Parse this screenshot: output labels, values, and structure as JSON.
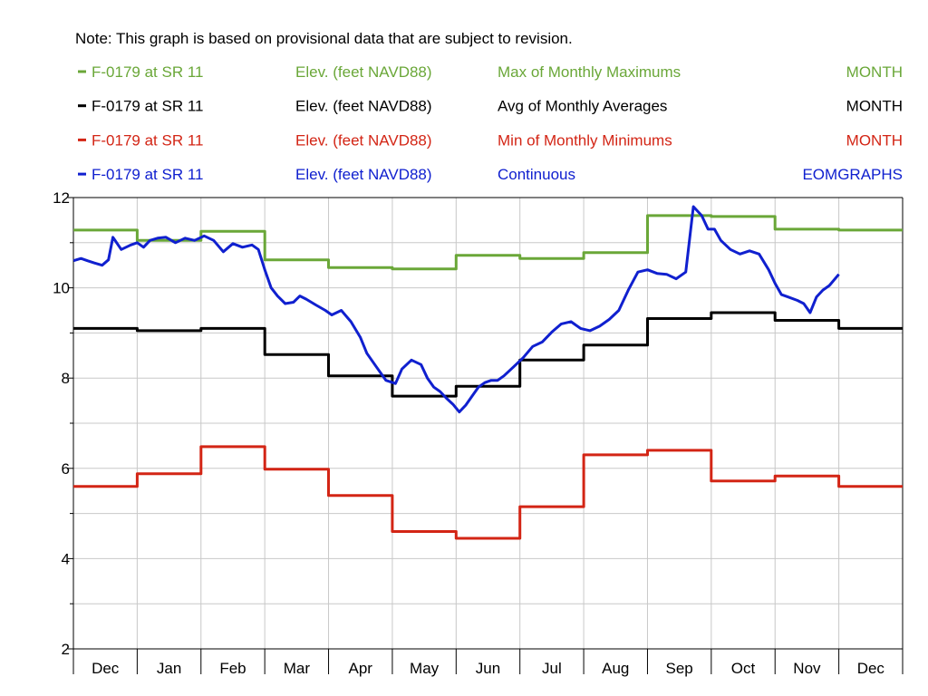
{
  "note": "Note: This graph is based on provisional data that are subject to revision.",
  "colors": {
    "green": "#6aa738",
    "black": "#000000",
    "red": "#d32515",
    "blue": "#1020cf",
    "grid": "#c8c8c8"
  },
  "legend": [
    {
      "site": "F-0179 at SR 11",
      "param": "Elev. (feet NAVD88)",
      "stat": "Max of Monthly Maximums",
      "period": "MONTH",
      "color": "#6aa738"
    },
    {
      "site": "F-0179 at SR 11",
      "param": "Elev. (feet NAVD88)",
      "stat": "Avg of Monthly Averages",
      "period": "MONTH",
      "color": "#000000"
    },
    {
      "site": "F-0179 at SR 11",
      "param": "Elev. (feet NAVD88)",
      "stat": "Min of Monthly Minimums",
      "period": "MONTH",
      "color": "#d32515"
    },
    {
      "site": "F-0179 at SR 11",
      "param": "Elev. (feet NAVD88)",
      "stat": "Continuous",
      "period": "EOMGRAPHS",
      "color": "#1020cf"
    }
  ],
  "chart_data": {
    "type": "line",
    "title": "",
    "xlabel": "",
    "ylabel": "",
    "ylim": [
      2,
      12
    ],
    "ytick_labels": [
      "2",
      "4",
      "6",
      "8",
      "10",
      "12"
    ],
    "ytick_values": [
      2,
      4,
      6,
      8,
      10,
      12
    ],
    "grid": true,
    "categories": [
      "Dec",
      "Jan",
      "Feb",
      "Mar",
      "Apr",
      "May",
      "Jun",
      "Jul",
      "Aug",
      "Sep",
      "Oct",
      "Nov",
      "Dec"
    ],
    "series": [
      {
        "name": "Max of Monthly Maximums",
        "style": "step",
        "color": "#6aa738",
        "values": [
          11.28,
          11.05,
          11.25,
          10.62,
          10.45,
          10.42,
          10.72,
          10.65,
          10.78,
          11.6,
          11.58,
          11.3,
          11.28
        ]
      },
      {
        "name": "Avg of Monthly Averages",
        "style": "step",
        "color": "#000000",
        "values": [
          9.1,
          9.05,
          9.1,
          8.52,
          8.05,
          7.6,
          7.82,
          8.4,
          8.73,
          9.32,
          9.45,
          9.28,
          9.1
        ]
      },
      {
        "name": "Min of Monthly Minimums",
        "style": "step",
        "color": "#d32515",
        "values": [
          5.6,
          5.88,
          6.48,
          5.98,
          5.4,
          4.6,
          4.45,
          5.15,
          6.3,
          6.4,
          5.72,
          5.83,
          5.6
        ]
      },
      {
        "name": "Continuous",
        "style": "line",
        "color": "#1020cf",
        "x": [
          0,
          0.12,
          0.22,
          0.33,
          0.45,
          0.55,
          0.62,
          0.75,
          0.9,
          1.0,
          1.1,
          1.2,
          1.32,
          1.45,
          1.6,
          1.75,
          1.9,
          2.05,
          2.2,
          2.35,
          2.5,
          2.65,
          2.8,
          2.9,
          3.0,
          3.1,
          3.2,
          3.32,
          3.45,
          3.55,
          3.65,
          3.8,
          3.95,
          4.05,
          4.2,
          4.35,
          4.5,
          4.6,
          4.75,
          4.9,
          5.05,
          5.15,
          5.3,
          5.45,
          5.55,
          5.65,
          5.75,
          5.85,
          5.95,
          6.05,
          6.15,
          6.25,
          6.35,
          6.45,
          6.55,
          6.65,
          6.75,
          6.9,
          7.05,
          7.2,
          7.35,
          7.5,
          7.65,
          7.8,
          7.95,
          8.1,
          8.25,
          8.4,
          8.55,
          8.7,
          8.85,
          9.0,
          9.15,
          9.3,
          9.45,
          9.6,
          9.72,
          9.85,
          9.95,
          10.05,
          10.15,
          10.3,
          10.45,
          10.6,
          10.75,
          10.9,
          11.0,
          11.1,
          11.2,
          11.35,
          11.45,
          11.55,
          11.65,
          11.75,
          11.85,
          12.0
        ],
        "values": [
          10.6,
          10.65,
          10.6,
          10.55,
          10.5,
          10.62,
          11.12,
          10.85,
          10.95,
          11.0,
          10.9,
          11.05,
          11.1,
          11.12,
          11.0,
          11.1,
          11.05,
          11.15,
          11.05,
          10.8,
          10.98,
          10.9,
          10.95,
          10.85,
          10.4,
          10.0,
          9.82,
          9.65,
          9.68,
          9.82,
          9.75,
          9.62,
          9.5,
          9.4,
          9.5,
          9.25,
          8.9,
          8.55,
          8.25,
          7.95,
          7.88,
          8.2,
          8.4,
          8.3,
          8.0,
          7.8,
          7.7,
          7.55,
          7.42,
          7.25,
          7.4,
          7.6,
          7.8,
          7.9,
          7.95,
          7.95,
          8.05,
          8.25,
          8.45,
          8.7,
          8.8,
          9.02,
          9.2,
          9.25,
          9.1,
          9.05,
          9.15,
          9.3,
          9.5,
          9.95,
          10.35,
          10.4,
          10.32,
          10.3,
          10.2,
          10.35,
          11.8,
          11.6,
          11.3,
          11.3,
          11.05,
          10.85,
          10.75,
          10.82,
          10.75,
          10.4,
          10.1,
          9.85,
          9.8,
          9.72,
          9.65,
          9.45,
          9.8,
          9.95,
          10.05,
          10.3
        ]
      }
    ]
  }
}
